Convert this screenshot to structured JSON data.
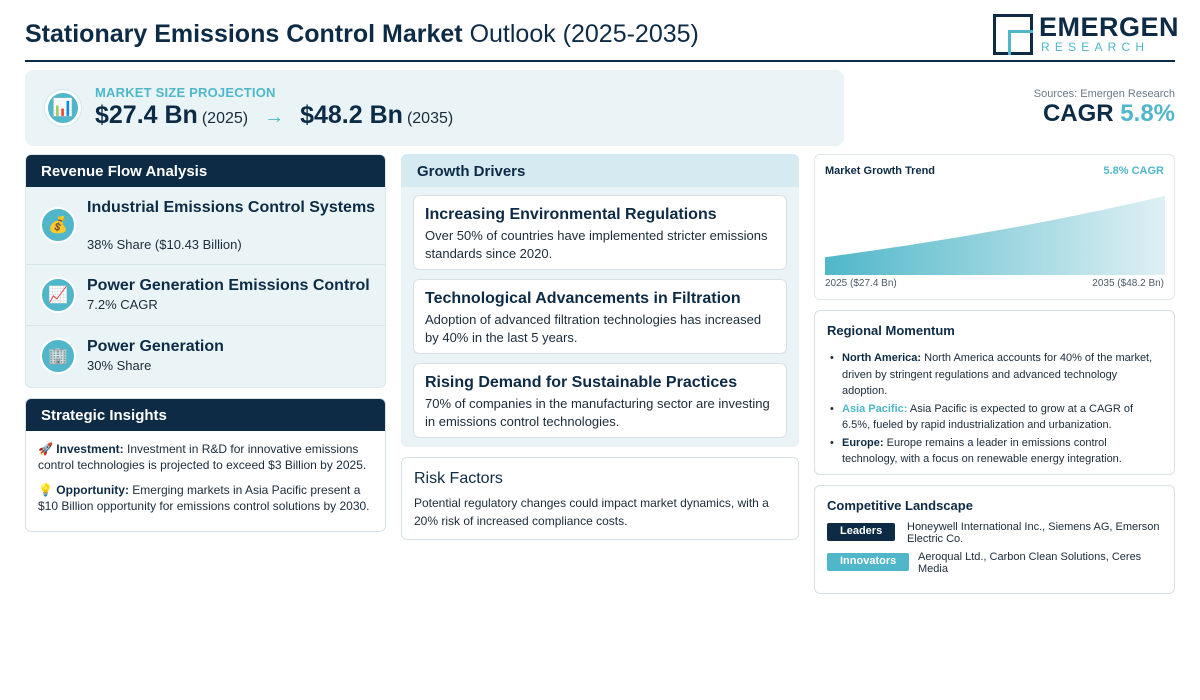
{
  "header": {
    "title_bold": "Stationary Emissions Control Market",
    "title_light": "Outlook (2025-2035)",
    "logo_word": "EMERGEN",
    "logo_sub": "RESEARCH"
  },
  "market_size": {
    "label": "MARKET SIZE PROJECTION",
    "icon": "bar-chart-icon",
    "start_value": "$27.4 Bn",
    "start_year": "(2025)",
    "arrow": "→",
    "end_value": "$48.2 Bn",
    "end_year": "(2035)"
  },
  "sources": "Sources: Emergen Research",
  "cagr": {
    "label": "CAGR",
    "value": "5.8%"
  },
  "revenue_flow": {
    "title": "Revenue Flow Analysis",
    "items": [
      {
        "icon": "money-bag-icon",
        "title": "Industrial Emissions Control Systems",
        "sub": "38% Share ($10.43 Billion)"
      },
      {
        "icon": "chart-increasing-icon",
        "title": "Power Generation Emissions Control",
        "sub": "7.2% CAGR"
      },
      {
        "icon": "building-icon",
        "title": "Power Generation",
        "sub": "30% Share"
      }
    ]
  },
  "strategic_insights": {
    "title": "Strategic Insights",
    "items": [
      {
        "icon": "rocket-icon",
        "label": "Investment:",
        "text": "Investment in R&D for innovative emissions control technologies is projected to exceed $3 Billion by 2025."
      },
      {
        "icon": "light-bulb-icon",
        "label": "Opportunity:",
        "text": "Emerging markets in Asia Pacific present a $10 Billion opportunity for emissions control solutions by 2030."
      }
    ]
  },
  "growth_drivers": {
    "title": "Growth Drivers",
    "items": [
      {
        "title": "Increasing Environmental Regulations",
        "desc": "Over 50% of countries have implemented stricter emissions standards since 2020."
      },
      {
        "title": "Technological Advancements in Filtration",
        "desc": "Adoption of advanced filtration technologies has increased by 40% in the last 5 years."
      },
      {
        "title": "Rising Demand for Sustainable Practices",
        "desc": "70% of companies in the manufacturing sector are investing in emissions control technologies."
      }
    ]
  },
  "risk_factors": {
    "title": "Risk Factors",
    "desc": "Potential regulatory changes could impact market dynamics, with a 20% risk of increased compliance costs."
  },
  "market_trend": {
    "title": "Market Growth Trend",
    "cagr_label": "5.8% CAGR",
    "left_label": "2025 ($27.4 Bn)",
    "right_label": "2035 ($48.2 Bn)",
    "colors": {
      "start": "#4fb7c9",
      "end": "#dff0f4"
    }
  },
  "chart_data": {
    "type": "area",
    "x": [
      2025,
      2035
    ],
    "values": [
      27.4,
      48.2
    ],
    "title": "Market Growth Trend",
    "xlabel": "",
    "ylabel": ""
  },
  "regional": {
    "title": "Regional Momentum",
    "items": [
      {
        "region": "North America:",
        "text": "North America accounts for 40% of the market, driven by stringent regulations and advanced technology adoption."
      },
      {
        "region": "Asia Pacific:",
        "text": "Asia Pacific is expected to grow at a CAGR of 6.5%, fueled by rapid industrialization and urbanization."
      },
      {
        "region": "Europe:",
        "text": "Europe remains a leader in emissions control technology, with a focus on renewable energy integration."
      }
    ]
  },
  "competitive": {
    "title": "Competitive Landscape",
    "rows": [
      {
        "badge": "Leaders",
        "color": "#0d2b45",
        "text": "Honeywell International Inc., Siemens AG, Emerson Electric Co."
      },
      {
        "badge": "Innovators",
        "color": "#4fb7c9",
        "text": "Aeroqual Ltd., Carbon Clean Solutions, Ceres Media"
      }
    ]
  }
}
